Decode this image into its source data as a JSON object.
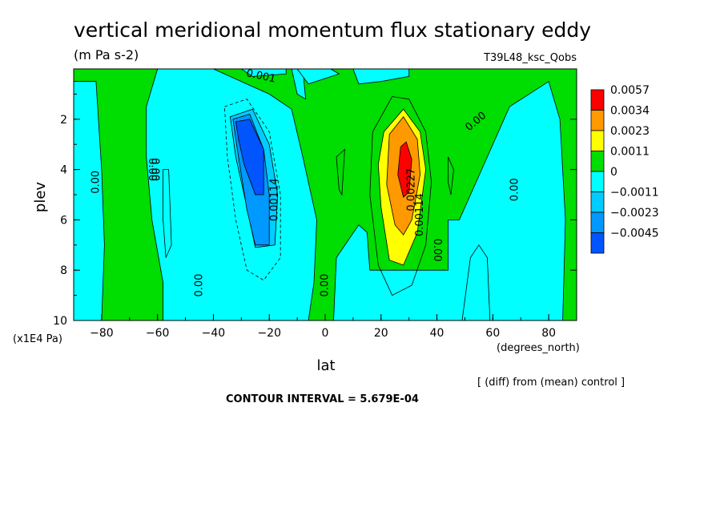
{
  "chart_data": {
    "type": "heatmap",
    "title": "vertical meridional momentum flux stationary eddy",
    "units": "(m Pa s-2)",
    "run_label": "T39L48_ksc_Qobs",
    "xlabel": "lat",
    "x_units": "(degrees_north)",
    "ylabel": "plev",
    "y_units": "(x1E4 Pa)",
    "xlim": [
      -90,
      90
    ],
    "ylim": [
      10,
      0
    ],
    "x_ticks": [
      -80,
      -60,
      -40,
      -20,
      0,
      20,
      40,
      60,
      80
    ],
    "x_tick_labels": [
      "−80",
      "−60",
      "−40",
      "−20",
      "0",
      "20",
      "40",
      "60",
      "80"
    ],
    "y_ticks": [
      2,
      4,
      6,
      8,
      10
    ],
    "y_tick_labels": [
      "2",
      "4",
      "6",
      "8",
      "10"
    ],
    "colorbar": {
      "labels": [
        "0.0057",
        "0.0034",
        "0.0023",
        "0.0011",
        "0",
        "−0.0011",
        "−0.0023",
        "−0.0045"
      ],
      "colors": [
        "#ff0000",
        "#ff9900",
        "#ffff00",
        "#00dd00",
        "#00ffff",
        "#00ccff",
        "#0099ff",
        "#0055ff"
      ]
    },
    "background_color": "#00dd00",
    "regions": [
      {
        "color": "#00ffff",
        "pts": [
          [
            -90,
            0.5
          ],
          [
            -82,
            0.5
          ],
          [
            -80,
            4
          ],
          [
            -79,
            7
          ],
          [
            -80,
            10
          ],
          [
            -90,
            10
          ]
        ]
      },
      {
        "color": "#00ffff",
        "pts": [
          [
            -60,
            0.0
          ],
          [
            -40,
            0.0
          ],
          [
            -30,
            0.5
          ],
          [
            -20,
            1.0
          ],
          [
            -12,
            1.6
          ],
          [
            -8,
            3.5
          ],
          [
            -3,
            6
          ],
          [
            -4,
            8.5
          ],
          [
            -6,
            10
          ],
          [
            -58,
            10
          ],
          [
            -58,
            8.5
          ],
          [
            -62,
            6
          ],
          [
            -64,
            3.5
          ],
          [
            -64,
            1.5
          ]
        ]
      },
      {
        "color": "#00ffff",
        "pts": [
          [
            -12,
            0.0
          ],
          [
            -8,
            0.0
          ],
          [
            -7,
            1.2
          ],
          [
            -10,
            1.0
          ]
        ]
      },
      {
        "color": "#00ffff",
        "pts": [
          [
            -30,
            0.0
          ],
          [
            -14,
            0.0
          ],
          [
            -14,
            0.2
          ],
          [
            -26,
            0.3
          ]
        ]
      },
      {
        "color": "#00ffff",
        "pts": [
          [
            -10,
            0.0
          ],
          [
            2,
            0.0
          ],
          [
            5,
            0.2
          ],
          [
            -6,
            0.6
          ]
        ]
      },
      {
        "color": "#00ffff",
        "pts": [
          [
            10,
            0.0
          ],
          [
            30,
            0.0
          ],
          [
            30,
            0.3
          ],
          [
            20,
            0.5
          ],
          [
            12,
            0.6
          ]
        ]
      },
      {
        "color": "#00ffff",
        "pts": [
          [
            4,
            7.5
          ],
          [
            12,
            6.2
          ],
          [
            15,
            6.5
          ],
          [
            16,
            8
          ],
          [
            44,
            8
          ],
          [
            44,
            6
          ],
          [
            48,
            6
          ],
          [
            56,
            4
          ],
          [
            66,
            1.5
          ],
          [
            80,
            0.5
          ],
          [
            84,
            2
          ],
          [
            86,
            6
          ],
          [
            85,
            10
          ],
          [
            3,
            10
          ]
        ]
      },
      {
        "color": "#00ffff",
        "pts": [
          [
            49,
            10
          ],
          [
            52,
            7.5
          ],
          [
            55,
            7
          ],
          [
            58,
            7.5
          ],
          [
            59,
            10
          ]
        ]
      },
      {
        "color": "#00ccff",
        "pts": [
          [
            -34,
            1.9
          ],
          [
            -26,
            1.6
          ],
          [
            -20,
            3.0
          ],
          [
            -17,
            5.0
          ],
          [
            -18,
            7.0
          ],
          [
            -25,
            7.1
          ],
          [
            -28,
            5.5
          ],
          [
            -32,
            3.5
          ]
        ]
      },
      {
        "color": "#0099ff",
        "pts": [
          [
            -33,
            2.0
          ],
          [
            -27,
            1.8
          ],
          [
            -22,
            3.2
          ],
          [
            -20,
            5.0
          ],
          [
            -20,
            7.0
          ],
          [
            -25,
            7.0
          ],
          [
            -28,
            5.6
          ],
          [
            -31,
            3.5
          ]
        ]
      },
      {
        "color": "#0055ff",
        "pts": [
          [
            -32,
            2.1
          ],
          [
            -27,
            2.0
          ],
          [
            -22,
            3.2
          ],
          [
            -22,
            5.0
          ],
          [
            -25,
            5.0
          ],
          [
            -29,
            3.8
          ],
          [
            -31,
            2.8
          ]
        ]
      },
      {
        "color": "#ffff00",
        "pts": [
          [
            21,
            2.5
          ],
          [
            28,
            1.6
          ],
          [
            34,
            2.5
          ],
          [
            36,
            4.0
          ],
          [
            33,
            6.5
          ],
          [
            28,
            7.8
          ],
          [
            23,
            7.6
          ],
          [
            20,
            5.5
          ],
          [
            19,
            3.8
          ]
        ]
      },
      {
        "color": "#ff9900",
        "pts": [
          [
            23,
            2.6
          ],
          [
            28,
            1.9
          ],
          [
            33,
            2.8
          ],
          [
            34,
            4.2
          ],
          [
            31,
            6.0
          ],
          [
            28,
            6.6
          ],
          [
            25,
            6.2
          ],
          [
            22,
            4.6
          ]
        ]
      },
      {
        "color": "#ff0000",
        "pts": [
          [
            27,
            3.1
          ],
          [
            29,
            2.9
          ],
          [
            31,
            3.6
          ],
          [
            30,
            4.9
          ],
          [
            28,
            5.1
          ],
          [
            26,
            4.2
          ]
        ]
      }
    ],
    "contour_lines": [
      {
        "style": "dash",
        "pts": [
          [
            -36,
            1.5
          ],
          [
            -28,
            1.2
          ],
          [
            -20,
            2.5
          ],
          [
            -16,
            5
          ],
          [
            -16,
            7.5
          ],
          [
            -22,
            8.4
          ],
          [
            -28,
            8.0
          ],
          [
            -32,
            6
          ],
          [
            -35,
            3.5
          ]
        ]
      },
      {
        "style": "solid",
        "pts": [
          [
            17,
            2.5
          ],
          [
            24,
            1.1
          ],
          [
            30,
            1.2
          ],
          [
            36,
            2.5
          ],
          [
            38,
            4.5
          ],
          [
            36,
            7
          ],
          [
            31,
            8.6
          ],
          [
            24,
            9.0
          ],
          [
            19,
            7.8
          ],
          [
            16,
            5
          ]
        ]
      },
      {
        "style": "solid",
        "pts": [
          [
            -58,
            4
          ],
          [
            -56,
            4
          ],
          [
            -55,
            7
          ],
          [
            -57,
            7.5
          ],
          [
            -58,
            6
          ]
        ]
      },
      {
        "style": "solid",
        "pts": [
          [
            4,
            3.5
          ],
          [
            7,
            3.2
          ],
          [
            6,
            5
          ],
          [
            5,
            4.8
          ]
        ]
      },
      {
        "style": "solid",
        "pts": [
          [
            44,
            3.5
          ],
          [
            46,
            4
          ],
          [
            45,
            5
          ],
          [
            44,
            4.5
          ]
        ]
      }
    ],
    "contour_labels": [
      {
        "text": "0.00",
        "lon": -82,
        "p": 4.5,
        "angle": -90
      },
      {
        "text": "0.00",
        "lon": -61,
        "p": 4.0,
        "angle": 90
      },
      {
        "text": "0.00",
        "lon": -45,
        "p": 8.6,
        "angle": -90
      },
      {
        "text": "0.00114",
        "lon": -18,
        "p": 5.2,
        "angle": -90
      },
      {
        "text": "0.00",
        "lon": 0,
        "p": 8.6,
        "angle": -90
      },
      {
        "text": "0.00227",
        "lon": 31,
        "p": 4.8,
        "angle": -90
      },
      {
        "text": "0.00114",
        "lon": 34,
        "p": 5.8,
        "angle": -90
      },
      {
        "text": "0.00",
        "lon": 40,
        "p": 7.2,
        "angle": 90
      },
      {
        "text": "0.00",
        "lon": 54,
        "p": 2.1,
        "angle": -40
      },
      {
        "text": "0.00",
        "lon": 68,
        "p": 4.8,
        "angle": -90
      },
      {
        "text": "0.001",
        "lon": -23,
        "p": 0.3,
        "angle": 12
      },
      {
        "text": "0.00",
        "lon": -62,
        "p": 4.0,
        "angle": 90
      }
    ],
    "footer_note": "[ (diff) from (mean) control ]",
    "contour_interval_text": "CONTOUR INTERVAL = 5.679E-04"
  }
}
